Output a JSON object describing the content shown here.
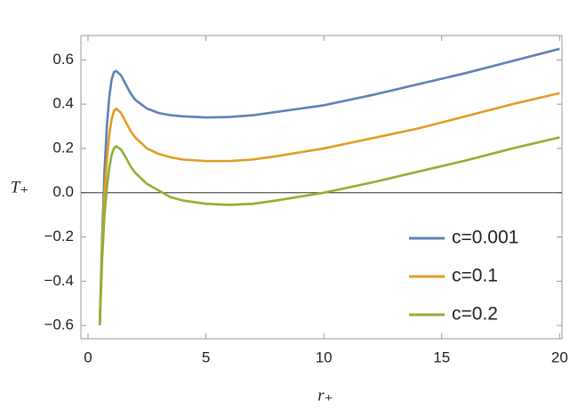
{
  "chart_data": {
    "type": "line",
    "xlabel": "r₊",
    "ylabel": "T₊",
    "xlim": [
      -0.3,
      20.1
    ],
    "ylim": [
      -0.66,
      0.71
    ],
    "xticks": [
      0,
      5,
      10,
      15,
      20
    ],
    "yticks": [
      {
        "value": -0.6,
        "label": "−0.6"
      },
      {
        "value": -0.4,
        "label": "−0.4"
      },
      {
        "value": -0.2,
        "label": "−0.2"
      },
      {
        "value": 0,
        "label": "0.0"
      },
      0.2,
      0.4,
      0.6
    ],
    "zero_line": true,
    "legend": "lower right",
    "x": [
      0.5,
      0.6,
      0.7,
      0.8,
      0.9,
      1.0,
      1.1,
      1.2,
      1.4,
      1.6,
      1.8,
      2,
      2.5,
      3,
      3.5,
      4,
      5,
      6,
      7,
      8,
      10,
      12,
      14,
      16,
      18,
      20
    ],
    "series": [
      {
        "name": "c=0.001",
        "color": "#5e81b5",
        "values": [
          -0.59,
          -0.2,
          0.1,
          0.3,
          0.43,
          0.51,
          0.545,
          0.55,
          0.53,
          0.49,
          0.45,
          0.42,
          0.38,
          0.36,
          0.35,
          0.345,
          0.34,
          0.342,
          0.35,
          0.365,
          0.395,
          0.44,
          0.49,
          0.54,
          0.595,
          0.65
        ]
      },
      {
        "name": "c=0.1",
        "color": "#e19c24",
        "values": [
          -0.595,
          -0.25,
          0.0,
          0.15,
          0.26,
          0.33,
          0.37,
          0.38,
          0.36,
          0.32,
          0.28,
          0.25,
          0.2,
          0.175,
          0.16,
          0.15,
          0.143,
          0.143,
          0.15,
          0.165,
          0.2,
          0.245,
          0.29,
          0.345,
          0.4,
          0.45
        ]
      },
      {
        "name": "c=0.2",
        "color": "#8fb032",
        "values": [
          -0.6,
          -0.3,
          -0.1,
          0.02,
          0.11,
          0.17,
          0.2,
          0.21,
          0.195,
          0.16,
          0.12,
          0.09,
          0.04,
          0.01,
          -0.02,
          -0.035,
          -0.05,
          -0.055,
          -0.05,
          -0.035,
          0.0,
          0.045,
          0.095,
          0.145,
          0.2,
          0.25
        ]
      }
    ]
  }
}
